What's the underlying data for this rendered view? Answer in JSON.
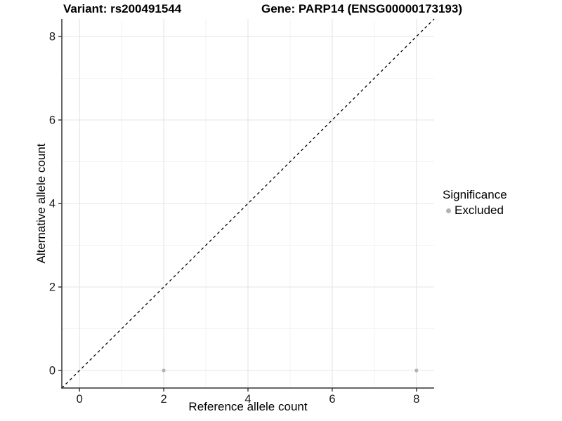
{
  "chart_data": {
    "type": "scatter",
    "title_left": "Variant: rs200491544",
    "title_right": "Gene: PARP14 (ENSG00000173193)",
    "xlabel": "Reference allele count",
    "ylabel": "Alternative allele count",
    "xlim": [
      -0.42,
      8.42
    ],
    "ylim": [
      -0.42,
      8.42
    ],
    "x_ticks": [
      0,
      2,
      4,
      6,
      8
    ],
    "y_ticks": [
      0,
      2,
      4,
      6,
      8
    ],
    "x_minor_ticks": [
      1,
      3,
      5,
      7
    ],
    "y_minor_ticks": [
      1,
      3,
      5,
      7
    ],
    "grid": "major+minor",
    "reference_line": {
      "equation": "y = x",
      "style": "dashed",
      "color": "#000000"
    },
    "series": [
      {
        "name": "Excluded",
        "color": "#b3b3b3",
        "points": [
          {
            "x": 2,
            "y": 0
          },
          {
            "x": 8,
            "y": 0
          }
        ]
      }
    ],
    "legend": {
      "title": "Significance",
      "position": "right",
      "items": [
        {
          "label": "Excluded",
          "color": "#b3b3b3"
        }
      ]
    },
    "colors": {
      "background": "#ffffff",
      "grid_major": "#e4e4e4",
      "grid_minor": "#f2f2f2",
      "axis_line": "#333333",
      "tick_label": "#1a1a1a",
      "point": "#b3b3b3"
    }
  }
}
